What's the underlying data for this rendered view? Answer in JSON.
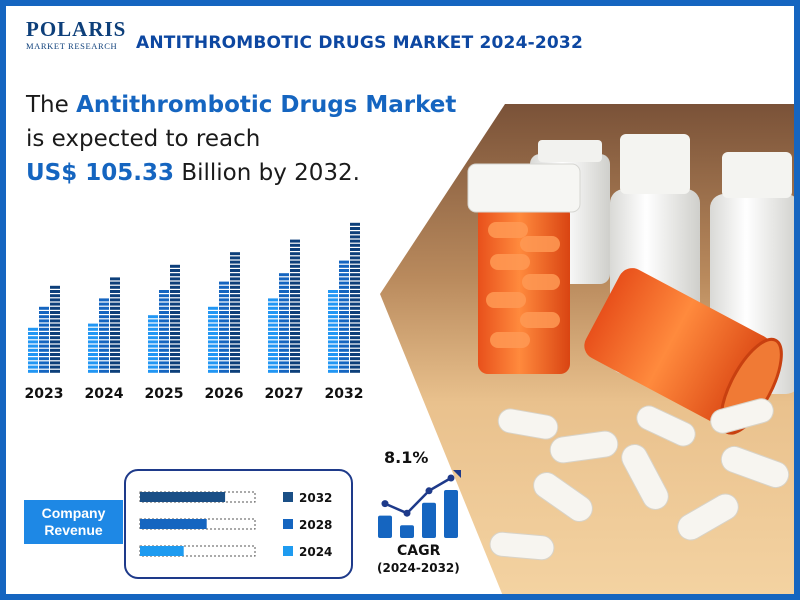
{
  "header": {
    "logo_main": "POLARIS",
    "logo_sub": "MARKET RESEARCH",
    "title": "ANTITHROMBOTIC DRUGS MARKET 2024-2032"
  },
  "headline": {
    "line1_prefix": "The ",
    "line1_highlight": "Antithrombotic Drugs Market",
    "line2": "is expected to reach",
    "line3_highlight": "US$ 105.33",
    "line3_suffix": " Billion by 2032."
  },
  "chart_data": {
    "type": "bar",
    "categories": [
      "2023",
      "2024",
      "2025",
      "2026",
      "2027",
      "2032"
    ],
    "series": [
      {
        "values": [
          48,
          54,
          61,
          69,
          77,
          86
        ]
      },
      {
        "values": [
          69,
          77,
          86,
          95,
          105,
          119
        ]
      },
      {
        "values": [
          91,
          101,
          112,
          124,
          138,
          154
        ]
      }
    ],
    "colors": [
      "#2196f3",
      "#1565c0",
      "#0d3f7a"
    ]
  },
  "company_revenue": {
    "label_line1": "Company",
    "label_line2": "Revenue",
    "bars": [
      {
        "year": "2032",
        "fill": 0.74,
        "color": "#1a4f86"
      },
      {
        "year": "2028",
        "fill": 0.58,
        "color": "#1565c0"
      },
      {
        "year": "2024",
        "fill": 0.38,
        "color": "#1e9bf0"
      }
    ]
  },
  "cagr": {
    "value": "8.1%",
    "label": "CAGR",
    "range": "(2024-2032)",
    "bars": [
      0.35,
      0.2,
      0.55,
      0.75
    ],
    "color": "#1565c0"
  }
}
